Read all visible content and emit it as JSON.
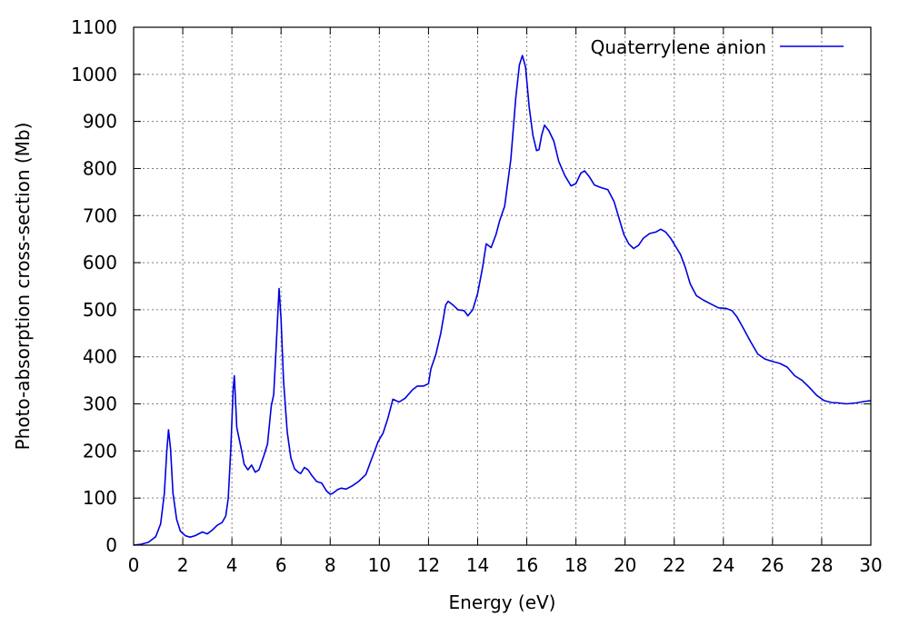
{
  "chart_data": {
    "type": "line",
    "xlabel": "Energy (eV)",
    "ylabel": "Photo-absorption cross-section (Mb)",
    "xlim": [
      0,
      30
    ],
    "ylim": [
      0,
      1100
    ],
    "xticks": [
      0,
      2,
      4,
      6,
      8,
      10,
      12,
      14,
      16,
      18,
      20,
      22,
      24,
      26,
      28,
      30
    ],
    "yticks": [
      0,
      100,
      200,
      300,
      400,
      500,
      600,
      700,
      800,
      900,
      1000,
      1100
    ],
    "grid": true,
    "legend_position": "top-right",
    "series": [
      {
        "name": "Quaterrylene anion",
        "color": "#0000e0",
        "points": [
          [
            0.0,
            0
          ],
          [
            0.3,
            2
          ],
          [
            0.6,
            6
          ],
          [
            0.9,
            18
          ],
          [
            1.1,
            45
          ],
          [
            1.25,
            110
          ],
          [
            1.35,
            200
          ],
          [
            1.42,
            245
          ],
          [
            1.5,
            205
          ],
          [
            1.6,
            110
          ],
          [
            1.75,
            55
          ],
          [
            1.9,
            30
          ],
          [
            2.1,
            20
          ],
          [
            2.3,
            17
          ],
          [
            2.5,
            20
          ],
          [
            2.8,
            28
          ],
          [
            3.0,
            24
          ],
          [
            3.2,
            32
          ],
          [
            3.4,
            42
          ],
          [
            3.6,
            48
          ],
          [
            3.75,
            62
          ],
          [
            3.85,
            100
          ],
          [
            3.95,
            200
          ],
          [
            4.05,
            330
          ],
          [
            4.1,
            360
          ],
          [
            4.2,
            250
          ],
          [
            4.3,
            225
          ],
          [
            4.4,
            200
          ],
          [
            4.5,
            172
          ],
          [
            4.65,
            160
          ],
          [
            4.8,
            170
          ],
          [
            4.95,
            155
          ],
          [
            5.1,
            160
          ],
          [
            5.3,
            190
          ],
          [
            5.45,
            215
          ],
          [
            5.6,
            295
          ],
          [
            5.7,
            320
          ],
          [
            5.8,
            420
          ],
          [
            5.92,
            545
          ],
          [
            6.0,
            480
          ],
          [
            6.1,
            350
          ],
          [
            6.25,
            240
          ],
          [
            6.4,
            185
          ],
          [
            6.55,
            162
          ],
          [
            6.7,
            155
          ],
          [
            6.8,
            152
          ],
          [
            6.95,
            165
          ],
          [
            7.1,
            160
          ],
          [
            7.25,
            148
          ],
          [
            7.45,
            135
          ],
          [
            7.65,
            132
          ],
          [
            7.85,
            115
          ],
          [
            8.0,
            108
          ],
          [
            8.1,
            110
          ],
          [
            8.3,
            118
          ],
          [
            8.45,
            121
          ],
          [
            8.65,
            119
          ],
          [
            8.9,
            126
          ],
          [
            9.15,
            135
          ],
          [
            9.45,
            150
          ],
          [
            9.7,
            185
          ],
          [
            9.95,
            220
          ],
          [
            10.15,
            238
          ],
          [
            10.35,
            270
          ],
          [
            10.55,
            310
          ],
          [
            10.8,
            304
          ],
          [
            11.05,
            312
          ],
          [
            11.35,
            330
          ],
          [
            11.55,
            338
          ],
          [
            11.8,
            338
          ],
          [
            12.0,
            343
          ],
          [
            12.1,
            375
          ],
          [
            12.3,
            405
          ],
          [
            12.5,
            450
          ],
          [
            12.7,
            510
          ],
          [
            12.8,
            518
          ],
          [
            13.0,
            510
          ],
          [
            13.2,
            500
          ],
          [
            13.45,
            498
          ],
          [
            13.6,
            487
          ],
          [
            13.8,
            500
          ],
          [
            14.0,
            535
          ],
          [
            14.2,
            590
          ],
          [
            14.35,
            640
          ],
          [
            14.55,
            632
          ],
          [
            14.75,
            660
          ],
          [
            14.9,
            690
          ],
          [
            15.1,
            720
          ],
          [
            15.35,
            820
          ],
          [
            15.55,
            950
          ],
          [
            15.7,
            1020
          ],
          [
            15.82,
            1040
          ],
          [
            15.95,
            1015
          ],
          [
            16.1,
            930
          ],
          [
            16.25,
            870
          ],
          [
            16.4,
            838
          ],
          [
            16.5,
            840
          ],
          [
            16.6,
            870
          ],
          [
            16.72,
            892
          ],
          [
            16.9,
            880
          ],
          [
            17.1,
            858
          ],
          [
            17.3,
            815
          ],
          [
            17.55,
            785
          ],
          [
            17.8,
            763
          ],
          [
            18.0,
            768
          ],
          [
            18.2,
            790
          ],
          [
            18.35,
            795
          ],
          [
            18.55,
            782
          ],
          [
            18.75,
            765
          ],
          [
            19.0,
            760
          ],
          [
            19.3,
            755
          ],
          [
            19.55,
            730
          ],
          [
            19.75,
            695
          ],
          [
            19.95,
            660
          ],
          [
            20.15,
            640
          ],
          [
            20.35,
            630
          ],
          [
            20.55,
            637
          ],
          [
            20.75,
            652
          ],
          [
            21.0,
            662
          ],
          [
            21.25,
            665
          ],
          [
            21.45,
            671
          ],
          [
            21.65,
            665
          ],
          [
            21.85,
            652
          ],
          [
            22.05,
            635
          ],
          [
            22.25,
            618
          ],
          [
            22.45,
            590
          ],
          [
            22.65,
            555
          ],
          [
            22.9,
            530
          ],
          [
            23.2,
            520
          ],
          [
            23.5,
            512
          ],
          [
            23.8,
            504
          ],
          [
            24.1,
            503
          ],
          [
            24.35,
            498
          ],
          [
            24.55,
            485
          ],
          [
            24.8,
            462
          ],
          [
            25.1,
            433
          ],
          [
            25.4,
            406
          ],
          [
            25.7,
            395
          ],
          [
            26.0,
            390
          ],
          [
            26.3,
            386
          ],
          [
            26.6,
            378
          ],
          [
            26.9,
            360
          ],
          [
            27.2,
            350
          ],
          [
            27.5,
            335
          ],
          [
            27.8,
            318
          ],
          [
            28.1,
            307
          ],
          [
            28.4,
            303
          ],
          [
            28.7,
            302
          ],
          [
            29.0,
            300
          ],
          [
            29.4,
            302
          ],
          [
            29.7,
            305
          ],
          [
            30.0,
            307
          ]
        ]
      }
    ]
  }
}
